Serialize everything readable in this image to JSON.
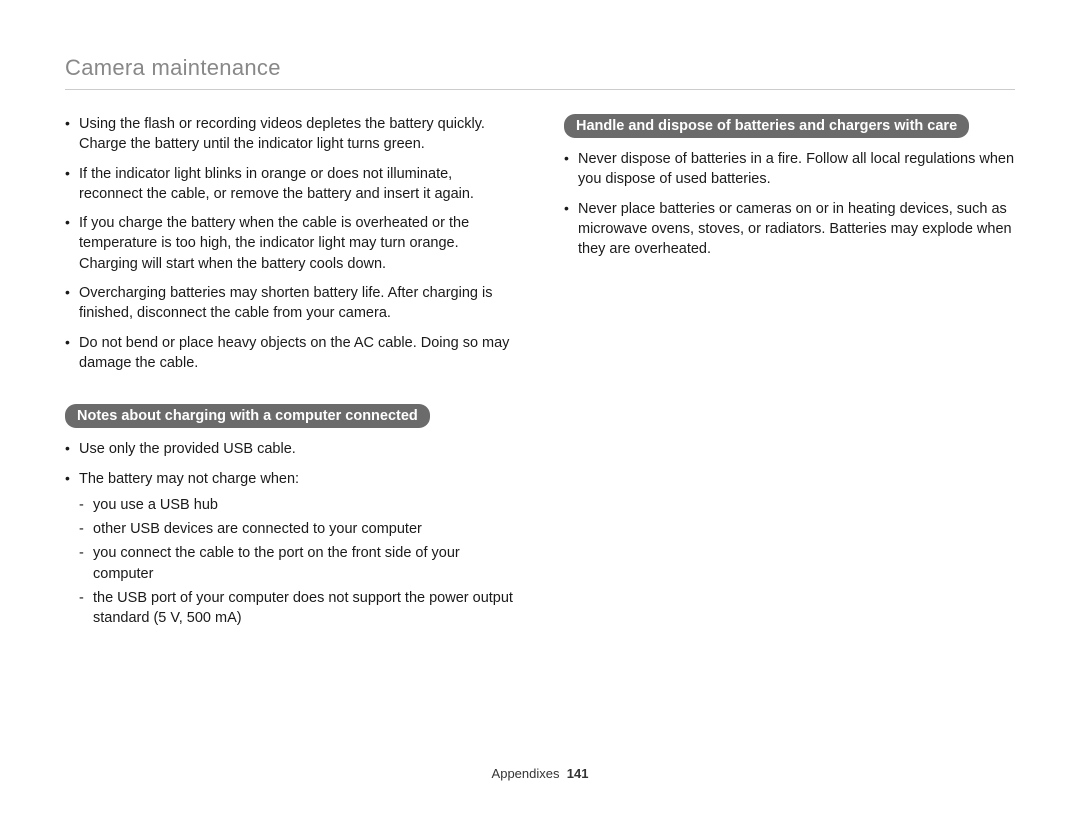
{
  "page": {
    "title": "Camera maintenance",
    "footer_label": "Appendixes",
    "page_number": "141"
  },
  "left": {
    "bullets": [
      "Using the flash or recording videos depletes the battery quickly. Charge the battery until the indicator light turns green.",
      "If the indicator light blinks in orange or does not illuminate, reconnect the cable, or remove the battery and insert it again.",
      "If you charge the battery when the cable is overheated or the temperature is too high, the indicator light may turn orange. Charging will start when the battery cools down.",
      "Overcharging batteries may shorten battery life. After charging is finished, disconnect the cable from your camera.",
      "Do not bend or place heavy objects on the AC cable. Doing so may damage the cable."
    ],
    "pill": "Notes about charging with a computer connected",
    "notes": [
      "Use only the provided USB cable.",
      "The battery may not charge when:"
    ],
    "sub_notes": [
      "you use a USB hub",
      "other USB devices are connected to your computer",
      "you connect the cable to the port on the front side of your computer",
      "the USB port of your computer does not support the power output standard (5 V, 500 mA)"
    ]
  },
  "right": {
    "pill": "Handle and dispose of batteries and chargers with care",
    "bullets": [
      "Never dispose of batteries in a fire. Follow all local regulations when you dispose of used batteries.",
      "Never place batteries or cameras on or in heating devices, such as microwave ovens, stoves, or radiators. Batteries may explode when they are overheated."
    ]
  },
  "style": {
    "text_color": "#1a1a1a",
    "title_color": "#888888",
    "pill_bg": "#6b6b6b",
    "pill_text": "#ffffff",
    "divider_color": "#cccccc",
    "body_fontsize": 14.5,
    "title_fontsize": 22
  }
}
